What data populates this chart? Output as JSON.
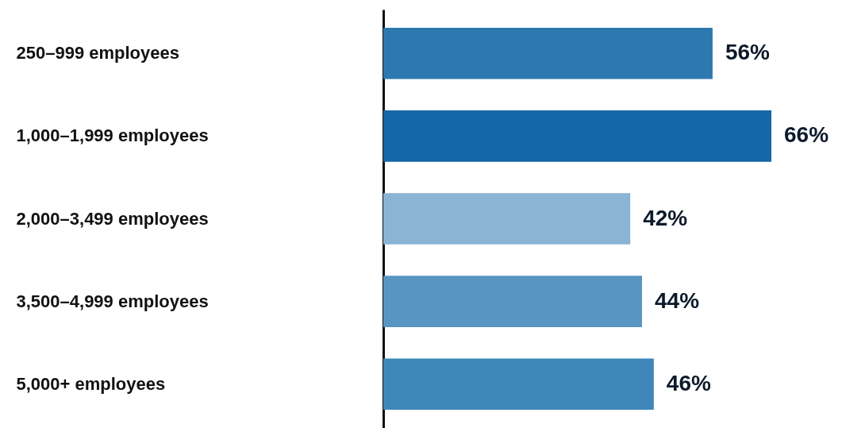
{
  "chart_data": {
    "type": "bar",
    "orientation": "horizontal",
    "categories": [
      "250–999 employees",
      "1,000–1,999 employees",
      "2,000–3,499 employees",
      "3,500–4,999 employees",
      "5,000+ employees"
    ],
    "values": [
      56,
      66,
      42,
      44,
      46
    ],
    "colors": [
      "#2e78b0",
      "#1467a8",
      "#8ab3d4",
      "#5895c2",
      "#3f86ba"
    ],
    "value_labels": [
      "56%",
      "66%",
      "42%",
      "44%",
      "46%"
    ]
  }
}
